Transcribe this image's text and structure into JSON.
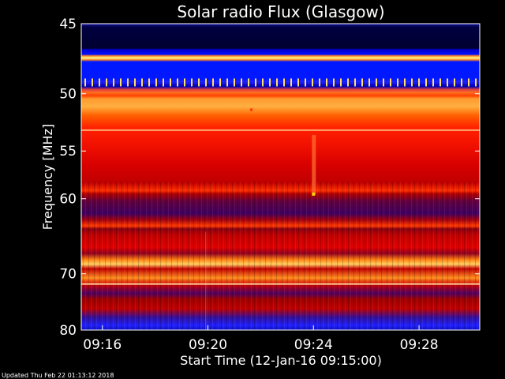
{
  "chart_data": {
    "type": "heatmap",
    "title": "Solar radio Flux (Glasgow)",
    "xlabel": "Start Time (12-Jan-16 09:15:00)",
    "ylabel": "Frequency [MHz]",
    "x_tick_labels": [
      "09:16",
      "09:20",
      "09:24",
      "09:28"
    ],
    "x_ticks_minutes": [
      1,
      5,
      9,
      13
    ],
    "xlim_minutes": [
      0.2,
      15.3
    ],
    "y_tick_values": [
      45,
      50,
      55,
      60,
      70,
      80
    ],
    "y_tick_labels": [
      "45",
      "50",
      "55",
      "60",
      "70",
      "80"
    ],
    "ylim_mhz": [
      45,
      80
    ],
    "y_scale": "reciprocal",
    "colormap": [
      "#00003c",
      "#0000ff",
      "#800000",
      "#ff0000",
      "#ff8000",
      "#ffff80"
    ],
    "background": "#000000",
    "grid": false
  },
  "footer": {
    "updated": "Updated Thu Feb 22 01:13:12 2018"
  }
}
